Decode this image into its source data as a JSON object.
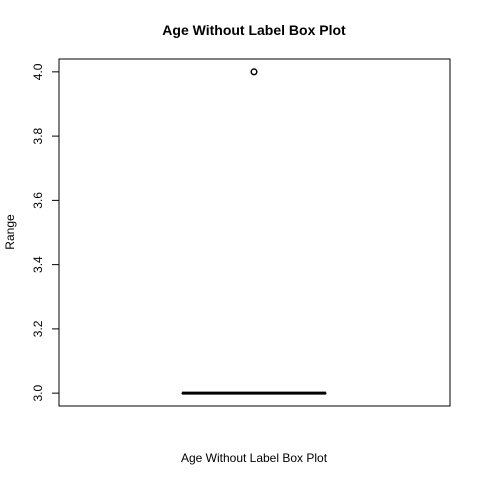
{
  "chart_data": {
    "type": "box",
    "title": "Age Without Label Box Plot",
    "xlabel": "Age Without Label Box Plot",
    "ylabel": "Range",
    "ylim": [
      2.96,
      4.04
    ],
    "yticks": [
      3.0,
      3.2,
      3.4,
      3.6,
      3.8,
      4.0
    ],
    "ytick_labels": [
      "3.0",
      "3.2",
      "3.4",
      "3.6",
      "3.8",
      "4.0"
    ],
    "box": {
      "min": 3.0,
      "q1": 3.0,
      "median": 3.0,
      "q3": 3.0,
      "max": 3.0,
      "outliers": [
        4.0
      ]
    },
    "grid": false,
    "colors": {
      "box": "#000000",
      "outlier": "#000000",
      "background": "#ffffff"
    }
  }
}
